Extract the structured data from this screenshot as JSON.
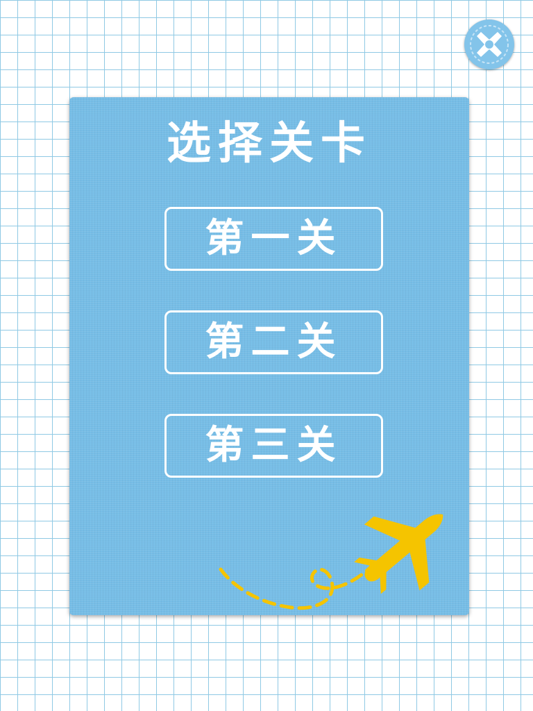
{
  "colors": {
    "grid_line": "#8fc9e4",
    "panel": "#76bde6",
    "close_button": "#83c4ea",
    "airplane": "#f5c400",
    "text": "#ffffff"
  },
  "close_button": {
    "icon": "close-icon"
  },
  "panel": {
    "title": "选择关卡",
    "levels": [
      {
        "label": "第一关"
      },
      {
        "label": "第二关"
      },
      {
        "label": "第三关"
      }
    ]
  },
  "decoration": {
    "icon": "airplane-icon",
    "trail": "dashed-flight-path"
  }
}
